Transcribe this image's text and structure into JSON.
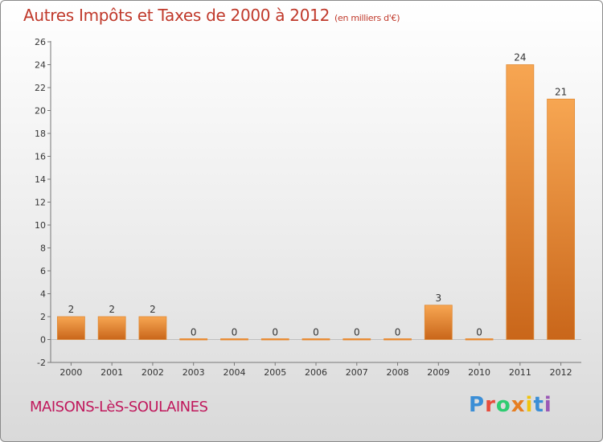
{
  "header": {
    "title": "Autres Impôts et Taxes de 2000 à 2012",
    "unit": "(en milliers d'€)"
  },
  "footer": {
    "commune": "MAISONS-LèS-SOULAINES",
    "logo_letters": [
      "P",
      "r",
      "o",
      "x",
      "i",
      "t",
      "i"
    ],
    "logo_colors": [
      "#3b8ed6",
      "#e74c3c",
      "#2ecc71",
      "#e67e22",
      "#f1c40f",
      "#3b8ed6",
      "#9b59b6"
    ]
  },
  "chart_data": {
    "type": "bar",
    "categories": [
      "2000",
      "2001",
      "2002",
      "2003",
      "2004",
      "2005",
      "2006",
      "2007",
      "2008",
      "2009",
      "2010",
      "2011",
      "2012"
    ],
    "values": [
      2,
      2,
      2,
      0,
      0,
      0,
      0,
      0,
      0,
      3,
      0,
      24,
      21
    ],
    "ylim": [
      -2,
      26
    ],
    "yticks": [
      -2,
      0,
      2,
      4,
      6,
      8,
      10,
      12,
      14,
      16,
      18,
      20,
      22,
      24,
      26
    ],
    "grid": false,
    "bar_color": "#e8892f"
  }
}
